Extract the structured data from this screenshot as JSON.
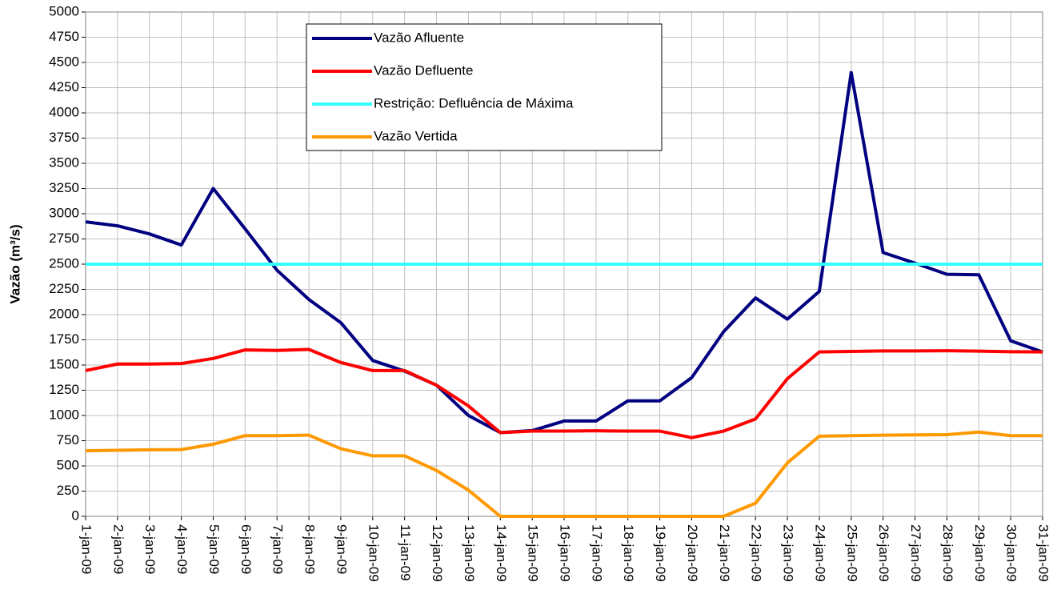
{
  "chart_data": {
    "type": "line",
    "ylabel": "Vazão (m³/s)",
    "categories": [
      "1-jan-09",
      "2-jan-09",
      "3-jan-09",
      "4-jan-09",
      "5-jan-09",
      "6-jan-09",
      "7-jan-09",
      "8-jan-09",
      "9-jan-09",
      "10-jan-09",
      "11-jan-09",
      "12-jan-09",
      "13-jan-09",
      "14-jan-09",
      "15-jan-09",
      "16-jan-09",
      "17-jan-09",
      "18-jan-09",
      "19-jan-09",
      "20-jan-09",
      "21-jan-09",
      "22-jan-09",
      "23-jan-09",
      "24-jan-09",
      "25-jan-09",
      "26-jan-09",
      "27-jan-09",
      "28-jan-09",
      "29-jan-09",
      "30-jan-09",
      "31-jan-09"
    ],
    "series": [
      {
        "name": "Vazão Afluente",
        "color": "#000080",
        "values": [
          2920,
          2880,
          2800,
          2690,
          3250,
          2850,
          2440,
          2150,
          1920,
          1545,
          1440,
          1300,
          1000,
          830,
          850,
          945,
          945,
          1145,
          1145,
          1375,
          1830,
          2165,
          1955,
          2230,
          4400,
          2615,
          2510,
          2400,
          2395,
          1740,
          1630
        ]
      },
      {
        "name": "Vazão Defluente",
        "color": "#ff0000",
        "values": [
          1445,
          1510,
          1510,
          1515,
          1565,
          1650,
          1645,
          1655,
          1525,
          1445,
          1445,
          1300,
          1095,
          830,
          845,
          845,
          848,
          845,
          845,
          780,
          845,
          965,
          1365,
          1630,
          1635,
          1640,
          1640,
          1642,
          1638,
          1632,
          1630
        ]
      },
      {
        "name": "Restrição: Defluência de Máxima",
        "color": "#33ffff",
        "values": [
          2500,
          2500,
          2500,
          2500,
          2500,
          2500,
          2500,
          2500,
          2500,
          2500,
          2500,
          2500,
          2500,
          2500,
          2500,
          2500,
          2500,
          2500,
          2500,
          2500,
          2500,
          2500,
          2500,
          2500,
          2500,
          2500,
          2500,
          2500,
          2500,
          2500,
          2500
        ]
      },
      {
        "name": "Vazão Vertida",
        "color": "#ff9900",
        "values": [
          650,
          655,
          660,
          662,
          715,
          800,
          800,
          805,
          670,
          600,
          600,
          455,
          260,
          0,
          0,
          0,
          0,
          0,
          0,
          0,
          0,
          130,
          530,
          795,
          800,
          805,
          808,
          810,
          835,
          800,
          800
        ]
      }
    ],
    "ylim": [
      0,
      5000
    ],
    "yticks": [
      0,
      250,
      500,
      750,
      1000,
      1250,
      1500,
      1750,
      2000,
      2250,
      2500,
      2750,
      3000,
      3250,
      3500,
      3750,
      4000,
      4250,
      4500,
      4750,
      5000
    ],
    "grid": true
  }
}
